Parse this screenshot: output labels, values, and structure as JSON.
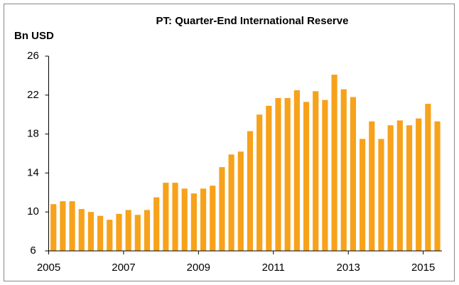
{
  "chart_data": {
    "type": "bar",
    "title": "PT: Quarter-End International Reserve",
    "y_label": "Bn USD",
    "x": [
      2005,
      2005.25,
      2005.5,
      2005.75,
      2006,
      2006.25,
      2006.5,
      2006.75,
      2007,
      2007.25,
      2007.5,
      2007.75,
      2008,
      2008.25,
      2008.5,
      2008.75,
      2009,
      2009.25,
      2009.5,
      2009.75,
      2010,
      2010.25,
      2010.5,
      2010.75,
      2011,
      2011.25,
      2011.5,
      2011.75,
      2012,
      2012.25,
      2012.5,
      2012.75,
      2013,
      2013.25,
      2013.5,
      2013.75,
      2014,
      2014.25,
      2014.5,
      2014.75,
      2015,
      2015.25
    ],
    "values": [
      10.8,
      11.1,
      11.1,
      10.3,
      10.0,
      9.6,
      9.2,
      9.8,
      10.2,
      9.7,
      10.2,
      11.5,
      13.0,
      13.0,
      12.4,
      11.9,
      12.4,
      12.7,
      14.6,
      15.9,
      16.2,
      18.3,
      20.0,
      20.9,
      21.7,
      21.7,
      22.5,
      21.3,
      22.4,
      21.5,
      24.1,
      22.6,
      21.8,
      17.5,
      19.3,
      17.5,
      18.9,
      19.4,
      18.9,
      19.6,
      21.1,
      19.3
    ],
    "color": "#f7a21b",
    "xlim": [
      2005,
      2015.5
    ],
    "xticks": [
      2005,
      2007,
      2009,
      2011,
      2013,
      2015
    ],
    "ylim": [
      6,
      26
    ],
    "yticks": [
      6,
      10,
      14,
      18,
      22,
      26
    ],
    "grid": false
  }
}
